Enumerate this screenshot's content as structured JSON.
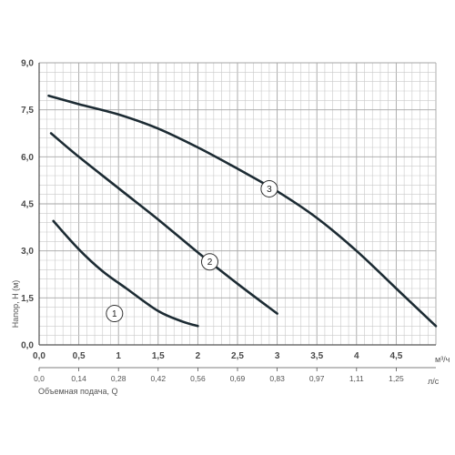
{
  "chart_data": {
    "type": "line",
    "ylabel": "Напор, H (м)",
    "xlabel": "Объемная подача, Q",
    "x_unit": "м³/ч",
    "x2_unit": "л/с",
    "xlim": [
      0,
      5
    ],
    "ylim": [
      0,
      9
    ],
    "x_ticks": [
      {
        "value": 0,
        "label": "0,0"
      },
      {
        "value": 0.5,
        "label": "0,5"
      },
      {
        "value": 1,
        "label": "1"
      },
      {
        "value": 1.5,
        "label": "1,5"
      },
      {
        "value": 2,
        "label": "2"
      },
      {
        "value": 2.5,
        "label": "2,5"
      },
      {
        "value": 3,
        "label": "3"
      },
      {
        "value": 3.5,
        "label": "3,5"
      },
      {
        "value": 4,
        "label": "4"
      },
      {
        "value": 4.5,
        "label": "4,5"
      }
    ],
    "y_ticks": [
      {
        "value": 0,
        "label": "0,0"
      },
      {
        "value": 1.5,
        "label": "1,5"
      },
      {
        "value": 3,
        "label": "3,0"
      },
      {
        "value": 4.5,
        "label": "4,5"
      },
      {
        "value": 6,
        "label": "6,0"
      },
      {
        "value": 7.5,
        "label": "7,5"
      },
      {
        "value": 9,
        "label": "9,0"
      }
    ],
    "x2_ticks": [
      {
        "value": 0,
        "label": "0,0"
      },
      {
        "value": 0.5,
        "label": "0,14"
      },
      {
        "value": 1,
        "label": "0,28"
      },
      {
        "value": 1.5,
        "label": "0,42"
      },
      {
        "value": 2,
        "label": "0,56"
      },
      {
        "value": 2.5,
        "label": "0,69"
      },
      {
        "value": 3,
        "label": "0,83"
      },
      {
        "value": 3.5,
        "label": "0,97"
      },
      {
        "value": 4,
        "label": "1,11"
      },
      {
        "value": 4.5,
        "label": "1,25"
      }
    ],
    "grid": true,
    "grid_minor_step_x": 0.1,
    "grid_minor_step_y": 0.3,
    "series": [
      {
        "label": "1",
        "points": [
          [
            0.18,
            3.95
          ],
          [
            0.5,
            3.05
          ],
          [
            0.8,
            2.35
          ],
          [
            1.1,
            1.8
          ],
          [
            1.5,
            1.08
          ],
          [
            1.8,
            0.75
          ],
          [
            2.0,
            0.6
          ]
        ],
        "label_at": [
          0.95,
          1.0
        ]
      },
      {
        "label": "2",
        "points": [
          [
            0.15,
            6.75
          ],
          [
            0.5,
            6.0
          ],
          [
            1.0,
            5.0
          ],
          [
            1.5,
            4.0
          ],
          [
            2.0,
            2.95
          ],
          [
            2.5,
            1.95
          ],
          [
            3.0,
            1.0
          ]
        ],
        "label_at": [
          2.15,
          2.65
        ]
      },
      {
        "label": "3",
        "points": [
          [
            0.12,
            7.95
          ],
          [
            0.5,
            7.68
          ],
          [
            1.0,
            7.35
          ],
          [
            1.5,
            6.9
          ],
          [
            2.0,
            6.3
          ],
          [
            2.5,
            5.62
          ],
          [
            3.0,
            4.9
          ],
          [
            3.5,
            4.05
          ],
          [
            4.0,
            3.0
          ],
          [
            4.5,
            1.8
          ],
          [
            5.0,
            0.6
          ]
        ],
        "label_at": [
          2.9,
          4.98
        ]
      }
    ],
    "colors": {
      "curve": "#1c2b33",
      "grid_minor": "#c9c9c9",
      "grid_major": "#a6a6a6",
      "axis": "#555555"
    }
  }
}
